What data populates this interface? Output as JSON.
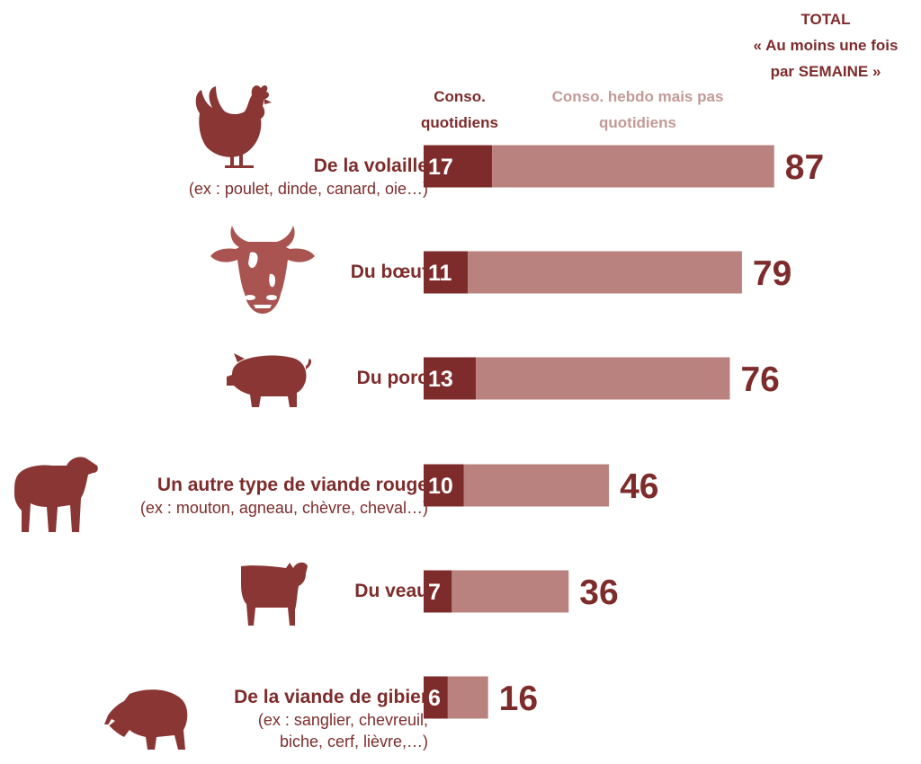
{
  "header": {
    "total_line1": "TOTAL",
    "total_line2": "« Au moins une fois",
    "total_line3": "par SEMAINE »",
    "daily_line1": "Conso.",
    "daily_line2": "quotidiens",
    "weekly_line1": "Conso. hebdo mais pas",
    "weekly_line2": "quotidiens"
  },
  "rows": [
    {
      "label": "De la volaille",
      "sub1": "(ex : poulet, dinde, canard, oie…)",
      "sub2": "",
      "icon": "chicken-icon"
    },
    {
      "label": "Du bœuf",
      "sub1": "",
      "sub2": "",
      "icon": "cow-icon"
    },
    {
      "label": "Du porc",
      "sub1": "",
      "sub2": "",
      "icon": "pig-icon"
    },
    {
      "label": "Un autre type de viande rouge",
      "sub1": "(ex : mouton, agneau, chèvre, cheval…)",
      "sub2": "",
      "icon": "sheep-icon"
    },
    {
      "label": "Du veau",
      "sub1": "",
      "sub2": "",
      "icon": "calf-icon"
    },
    {
      "label": "De la viande de gibier",
      "sub1": "(ex : sanglier, chevreuil,",
      "sub2": "biche, cerf, lièvre,…)",
      "icon": "boar-icon"
    }
  ],
  "chart_data": {
    "type": "bar",
    "orientation": "horizontal",
    "stacked": true,
    "categories": [
      "De la volaille",
      "Du bœuf",
      "Du porc",
      "Un autre type de viande rouge",
      "Du veau",
      "De la viande de gibier"
    ],
    "series": [
      {
        "name": "Conso. quotidiens",
        "values": [
          17,
          11,
          13,
          10,
          7,
          6
        ],
        "color": "#7e2c2b"
      },
      {
        "name": "Conso. hebdo mais pas quotidiens",
        "values": [
          70,
          68,
          63,
          36,
          29,
          10
        ],
        "color": "#b9827f"
      }
    ],
    "totals": [
      87,
      79,
      76,
      46,
      36,
      16
    ],
    "grid": false,
    "legend": "top"
  },
  "colors": {
    "dark": "#7e2c2b",
    "light": "#b9827f",
    "legend_light": "#c29a97",
    "icon": "#8a3634",
    "icon_pale": "#a95450"
  }
}
